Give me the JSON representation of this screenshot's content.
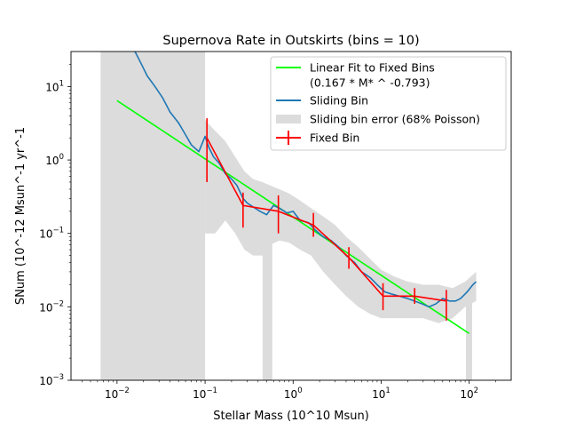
{
  "chart_data": {
    "type": "line",
    "title": "Supernova Rate in Outskirts (bins = 10)",
    "xlabel": "Stellar Mass (10^10 Msun)",
    "ylabel": "SNum (10^-12 Msun^-1 yr^-1",
    "x_scale": "log",
    "y_scale": "log",
    "xlim": [
      0.003,
      300
    ],
    "ylim": [
      0.001,
      30
    ],
    "x_ticks": [
      {
        "value": 0.01,
        "base": "10",
        "exp": "−2"
      },
      {
        "value": 0.1,
        "base": "10",
        "exp": "−1"
      },
      {
        "value": 1,
        "base": "10",
        "exp": "0"
      },
      {
        "value": 10,
        "base": "10",
        "exp": "1"
      },
      {
        "value": 100,
        "base": "10",
        "exp": "2"
      }
    ],
    "y_ticks": [
      {
        "value": 0.001,
        "base": "10",
        "exp": "−3"
      },
      {
        "value": 0.01,
        "base": "10",
        "exp": "−2"
      },
      {
        "value": 0.1,
        "base": "10",
        "exp": "−1"
      },
      {
        "value": 1,
        "base": "10",
        "exp": "0"
      },
      {
        "value": 10,
        "base": "10",
        "exp": "1"
      }
    ],
    "grid": false,
    "legend_position": "top-right",
    "legend": [
      {
        "label": "Linear Fit to Fixed Bins",
        "label2": "(0.167 * M* ^ -0.793)",
        "color": "#00ff00",
        "kind": "line"
      },
      {
        "label": "Sliding Bin",
        "color": "#1f77b4",
        "kind": "line"
      },
      {
        "label": "Sliding bin error (68% Poisson)",
        "color": "#dcdcdc",
        "kind": "patch"
      },
      {
        "label": "Fixed Bin",
        "color": "#ff0000",
        "kind": "errorbar"
      }
    ],
    "fit": {
      "name": "Linear Fit to Fixed Bins",
      "coefficient": 0.167,
      "exponent": -0.793,
      "x_range": [
        0.01,
        100
      ],
      "color": "#00ff00"
    },
    "fixed_bins": {
      "name": "Fixed Bin",
      "color": "#ff0000",
      "x": [
        0.105,
        0.27,
        0.68,
        1.7,
        4.3,
        10.5,
        24,
        55
      ],
      "y": [
        2.0,
        0.24,
        0.2,
        0.13,
        0.047,
        0.014,
        0.014,
        0.012
      ],
      "y_low": [
        0.5,
        0.12,
        0.1,
        0.09,
        0.033,
        0.009,
        0.011,
        0.0065
      ],
      "y_high": [
        3.7,
        0.36,
        0.33,
        0.19,
        0.065,
        0.021,
        0.018,
        0.017
      ]
    },
    "sliding_bin": {
      "name": "Sliding Bin",
      "color": "#1f77b4",
      "x": [
        0.016,
        0.019,
        0.022,
        0.027,
        0.033,
        0.04,
        0.05,
        0.06,
        0.07,
        0.085,
        0.1,
        0.11,
        0.125,
        0.145,
        0.17,
        0.2,
        0.23,
        0.27,
        0.3,
        0.35,
        0.42,
        0.5,
        0.6,
        0.7,
        0.85,
        1.0,
        1.2,
        1.5,
        1.8,
        2.2,
        2.7,
        3.3,
        4.0,
        5.0,
        6.0,
        7.5,
        9.0,
        11,
        13,
        16,
        20,
        24,
        29,
        35,
        42,
        50,
        60,
        70,
        80,
        95,
        110,
        120
      ],
      "y": [
        30,
        20,
        14,
        10,
        7,
        4.5,
        3.2,
        2.2,
        1.6,
        1.3,
        2.1,
        1.5,
        1.1,
        0.9,
        0.65,
        0.55,
        0.45,
        0.3,
        0.26,
        0.23,
        0.2,
        0.18,
        0.24,
        0.22,
        0.19,
        0.2,
        0.15,
        0.14,
        0.11,
        0.09,
        0.08,
        0.065,
        0.05,
        0.04,
        0.03,
        0.025,
        0.02,
        0.016,
        0.015,
        0.014,
        0.013,
        0.012,
        0.011,
        0.01,
        0.011,
        0.013,
        0.012,
        0.012,
        0.013,
        0.016,
        0.02,
        0.022
      ]
    },
    "error_band": {
      "name": "Sliding bin error (68% Poisson)",
      "color": "#dcdcdc",
      "polygons": [
        {
          "x": [
            0.0065,
            0.1,
            0.1,
            0.0065
          ],
          "y": [
            0.001,
            0.001,
            30,
            30
          ]
        },
        {
          "x": [
            0.1,
            0.13,
            0.17,
            0.22,
            0.28,
            0.35,
            0.45,
            0.55,
            0.7,
            0.9,
            1.2,
            1.6,
            2.2,
            3.0,
            4.0,
            5.5,
            7.5,
            10,
            14,
            20,
            30,
            45,
            65,
            90,
            120,
            120,
            90,
            65,
            45,
            30,
            20,
            14,
            10,
            7.5,
            5.5,
            4.0,
            3.0,
            2.2,
            1.6,
            1.2,
            0.9,
            0.7,
            0.55,
            0.45,
            0.35,
            0.28,
            0.22,
            0.17,
            0.13,
            0.1
          ],
          "y": [
            3.5,
            2.5,
            1.8,
            1.1,
            0.7,
            0.55,
            0.5,
            0.45,
            0.4,
            0.35,
            0.28,
            0.22,
            0.17,
            0.13,
            0.09,
            0.065,
            0.045,
            0.032,
            0.026,
            0.022,
            0.02,
            0.02,
            0.018,
            0.022,
            0.03,
            0.012,
            0.01,
            0.007,
            0.006,
            0.007,
            0.007,
            0.007,
            0.007,
            0.008,
            0.01,
            0.014,
            0.02,
            0.03,
            0.05,
            0.06,
            0.075,
            0.08,
            0.07,
            0.05,
            0.05,
            0.06,
            0.1,
            0.15,
            0.1,
            0.1
          ]
        },
        {
          "x": [
            0.45,
            0.58,
            0.58,
            0.45
          ],
          "y": [
            0.001,
            0.001,
            0.1,
            0.1
          ]
        },
        {
          "x": [
            92,
            108,
            108,
            92
          ],
          "y": [
            0.001,
            0.001,
            0.012,
            0.012
          ]
        }
      ]
    }
  }
}
